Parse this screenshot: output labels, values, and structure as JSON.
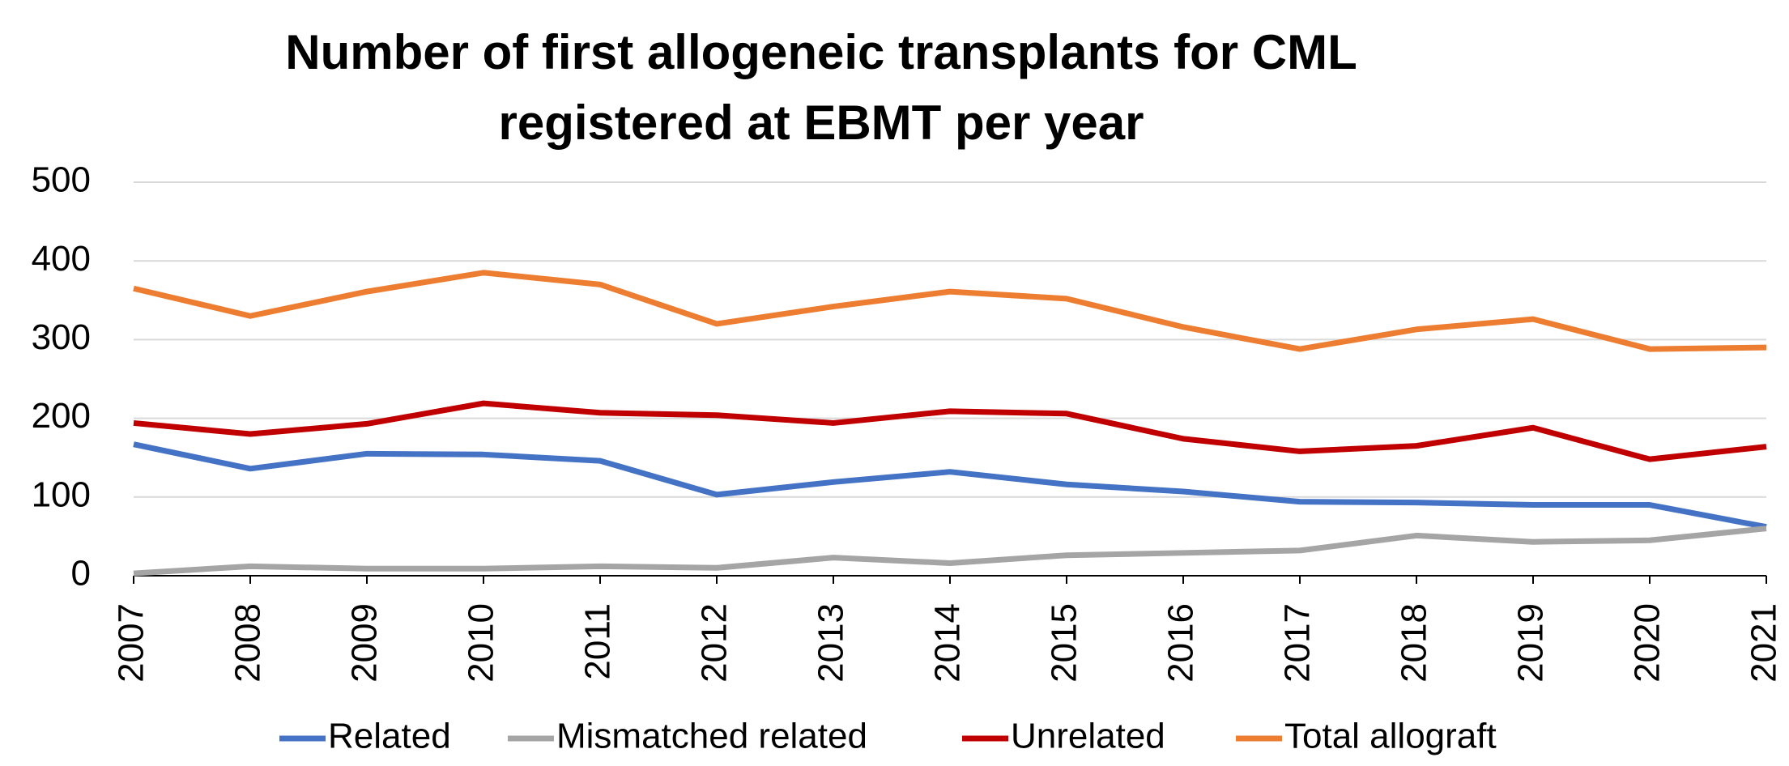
{
  "chart_data": {
    "type": "line",
    "title": [
      "Number of first allogeneic transplants for CML",
      "registered at EBMT per year"
    ],
    "categories": [
      "2007",
      "2008",
      "2009",
      "2010",
      "2011",
      "2012",
      "2013",
      "2014",
      "2015",
      "2016",
      "2017",
      "2018",
      "2019",
      "2020",
      "2021"
    ],
    "series": [
      {
        "name": "Related",
        "color": "#4472c4",
        "values": [
          167,
          136,
          155,
          154,
          146,
          103,
          119,
          132,
          116,
          107,
          94,
          93,
          90,
          90,
          62
        ]
      },
      {
        "name": "Mismatched related",
        "color": "#a5a5a5",
        "values": [
          3,
          12,
          9,
          9,
          12,
          10,
          23,
          16,
          26,
          29,
          32,
          51,
          43,
          45,
          60
        ]
      },
      {
        "name": "Unrelated",
        "color": "#c00000",
        "values": [
          194,
          180,
          193,
          219,
          207,
          204,
          194,
          209,
          206,
          174,
          158,
          165,
          188,
          148,
          164
        ]
      },
      {
        "name": "Total allograft",
        "color": "#ed7d31",
        "values": [
          365,
          330,
          361,
          385,
          370,
          320,
          342,
          361,
          352,
          316,
          288,
          313,
          326,
          288,
          290
        ]
      }
    ],
    "ylim": [
      0,
      500
    ],
    "yticks": [
      0,
      100,
      200,
      300,
      400,
      500
    ],
    "grid": true,
    "legend": "bottom"
  }
}
